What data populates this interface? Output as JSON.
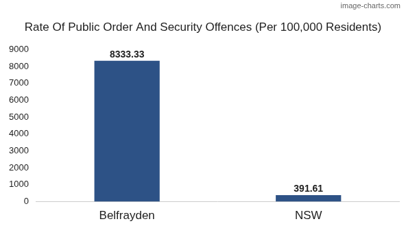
{
  "chart_data": {
    "type": "bar",
    "title": "Rate Of Public Order And Security Offences (Per 100,000 Residents)",
    "annotations": [
      "image-charts.com"
    ],
    "categories": [
      "Belfrayden",
      "NSW"
    ],
    "values": [
      8333.33,
      391.61
    ],
    "color": "#2d5286",
    "ylim": [
      0,
      9000
    ],
    "yticks": [
      0,
      1000,
      2000,
      3000,
      4000,
      5000,
      6000,
      7000,
      8000,
      9000
    ],
    "grid": false,
    "data_labels": true
  }
}
